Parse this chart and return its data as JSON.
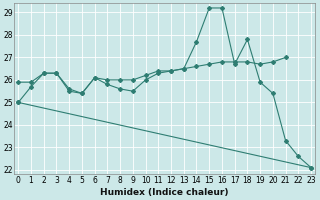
{
  "xlabel": "Humidex (Indice chaleur)",
  "x_values": [
    0,
    1,
    2,
    3,
    4,
    5,
    6,
    7,
    8,
    9,
    10,
    11,
    12,
    13,
    14,
    15,
    16,
    17,
    18,
    19,
    20,
    21,
    22,
    23
  ],
  "line1": [
    25.9,
    25.9,
    26.3,
    26.3,
    25.6,
    25.4,
    26.1,
    26.0,
    26.0,
    26.0,
    26.2,
    26.4,
    26.4,
    26.5,
    26.6,
    26.7,
    26.8,
    26.8,
    26.8,
    26.7,
    26.8,
    27.0,
    null,
    null
  ],
  "line2": [
    25.0,
    25.7,
    26.3,
    26.3,
    25.5,
    25.4,
    26.1,
    25.8,
    25.6,
    25.5,
    26.0,
    26.3,
    26.4,
    26.5,
    27.7,
    29.2,
    29.2,
    26.7,
    27.8,
    25.9,
    25.4,
    23.3,
    22.6,
    22.1
  ],
  "line3_x": [
    0,
    23
  ],
  "line3_y": [
    25.0,
    22.1
  ],
  "ylim_min": 21.8,
  "ylim_max": 29.4,
  "yticks": [
    22,
    23,
    24,
    25,
    26,
    27,
    28,
    29
  ],
  "xlim_min": -0.3,
  "xlim_max": 23.3,
  "line_color": "#2e7d72",
  "bg_color": "#cce8e8",
  "grid_color": "#b8d8d8",
  "tick_fontsize": 5.5,
  "xlabel_fontsize": 6.5
}
